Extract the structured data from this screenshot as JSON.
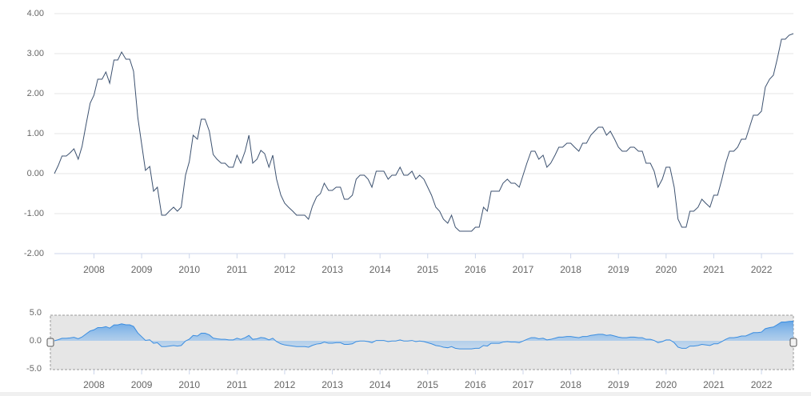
{
  "chart_data": {
    "type": "line",
    "x": [
      2007.17,
      2007.25,
      2007.33,
      2007.42,
      2007.5,
      2007.58,
      2007.67,
      2007.75,
      2007.83,
      2007.92,
      2008,
      2008.08,
      2008.17,
      2008.25,
      2008.33,
      2008.42,
      2008.5,
      2008.58,
      2008.67,
      2008.75,
      2008.83,
      2008.92,
      2009,
      2009.08,
      2009.17,
      2009.25,
      2009.33,
      2009.42,
      2009.5,
      2009.58,
      2009.67,
      2009.75,
      2009.83,
      2009.92,
      2010,
      2010.08,
      2010.17,
      2010.25,
      2010.33,
      2010.42,
      2010.5,
      2010.58,
      2010.67,
      2010.75,
      2010.83,
      2010.92,
      2011,
      2011.08,
      2011.17,
      2011.25,
      2011.33,
      2011.42,
      2011.5,
      2011.58,
      2011.67,
      2011.75,
      2011.83,
      2011.92,
      2012,
      2012.08,
      2012.17,
      2012.25,
      2012.33,
      2012.42,
      2012.5,
      2012.58,
      2012.67,
      2012.75,
      2012.83,
      2012.92,
      2013,
      2013.08,
      2013.17,
      2013.25,
      2013.33,
      2013.42,
      2013.5,
      2013.58,
      2013.67,
      2013.75,
      2013.83,
      2013.92,
      2014,
      2014.08,
      2014.17,
      2014.25,
      2014.33,
      2014.42,
      2014.5,
      2014.58,
      2014.67,
      2014.75,
      2014.83,
      2014.92,
      2015,
      2015.08,
      2015.17,
      2015.25,
      2015.33,
      2015.42,
      2015.5,
      2015.58,
      2015.67,
      2015.75,
      2015.83,
      2015.92,
      2016,
      2016.08,
      2016.17,
      2016.25,
      2016.33,
      2016.42,
      2016.5,
      2016.58,
      2016.67,
      2016.75,
      2016.83,
      2016.92,
      2017,
      2017.08,
      2017.17,
      2017.25,
      2017.33,
      2017.42,
      2017.5,
      2017.58,
      2017.67,
      2017.75,
      2017.83,
      2017.92,
      2018,
      2018.08,
      2018.17,
      2018.25,
      2018.33,
      2018.42,
      2018.5,
      2018.58,
      2018.67,
      2018.75,
      2018.83,
      2018.92,
      2019,
      2019.08,
      2019.17,
      2019.25,
      2019.33,
      2019.42,
      2019.5,
      2019.58,
      2019.67,
      2019.75,
      2019.83,
      2019.92,
      2020,
      2020.08,
      2020.17,
      2020.25,
      2020.33,
      2020.42,
      2020.5,
      2020.58,
      2020.67,
      2020.75,
      2020.83,
      2020.92,
      2021,
      2021.08,
      2021.17,
      2021.25,
      2021.33,
      2021.42,
      2021.5,
      2021.58,
      2021.67,
      2021.75,
      2021.83,
      2021.92,
      2022,
      2022.08,
      2022.17,
      2022.25,
      2022.33,
      2022.42,
      2022.5,
      2022.58,
      2022.67
    ],
    "series": [
      {
        "color": "#3d5270",
        "values": [
          0.0,
          0.2,
          0.44,
          0.44,
          0.52,
          0.62,
          0.36,
          0.68,
          1.2,
          1.76,
          1.96,
          2.36,
          2.36,
          2.54,
          2.26,
          2.84,
          2.84,
          3.04,
          2.86,
          2.86,
          2.56,
          1.4,
          0.74,
          0.08,
          0.18,
          -0.44,
          -0.34,
          -1.04,
          -1.04,
          -0.94,
          -0.84,
          -0.94,
          -0.84,
          -0.04,
          0.3,
          0.96,
          0.86,
          1.36,
          1.36,
          1.06,
          0.48,
          0.36,
          0.26,
          0.26,
          0.16,
          0.16,
          0.46,
          0.26,
          0.56,
          0.96,
          0.26,
          0.36,
          0.58,
          0.5,
          0.16,
          0.46,
          -0.14,
          -0.54,
          -0.74,
          -0.84,
          -0.94,
          -1.04,
          -1.04,
          -1.04,
          -1.14,
          -0.82,
          -0.58,
          -0.5,
          -0.24,
          -0.42,
          -0.42,
          -0.34,
          -0.34,
          -0.64,
          -0.64,
          -0.54,
          -0.14,
          -0.04,
          -0.04,
          -0.14,
          -0.34,
          0.06,
          0.06,
          0.06,
          -0.14,
          -0.04,
          -0.04,
          0.16,
          -0.04,
          -0.04,
          0.06,
          -0.14,
          -0.04,
          -0.14,
          -0.34,
          -0.54,
          -0.84,
          -0.94,
          -1.14,
          -1.24,
          -1.04,
          -1.34,
          -1.44,
          -1.44,
          -1.44,
          -1.44,
          -1.34,
          -1.34,
          -0.84,
          -0.94,
          -0.44,
          -0.44,
          -0.44,
          -0.24,
          -0.14,
          -0.24,
          -0.24,
          -0.34,
          -0.04,
          0.26,
          0.56,
          0.56,
          0.36,
          0.46,
          0.16,
          0.26,
          0.46,
          0.66,
          0.66,
          0.76,
          0.76,
          0.66,
          0.56,
          0.76,
          0.76,
          0.96,
          1.06,
          1.16,
          1.16,
          0.96,
          1.06,
          0.86,
          0.66,
          0.56,
          0.56,
          0.66,
          0.66,
          0.56,
          0.56,
          0.26,
          0.26,
          0.06,
          -0.34,
          -0.14,
          0.16,
          0.16,
          -0.34,
          -1.14,
          -1.34,
          -1.34,
          -0.94,
          -0.94,
          -0.84,
          -0.64,
          -0.74,
          -0.84,
          -0.54,
          -0.54,
          -0.14,
          0.26,
          0.56,
          0.56,
          0.66,
          0.86,
          0.86,
          1.16,
          1.46,
          1.46,
          1.56,
          2.16,
          2.36,
          2.46,
          2.86,
          3.36,
          3.36,
          3.46,
          3.5
        ]
      }
    ],
    "xlim": [
      2007.17,
      2022.67
    ],
    "xticks": [
      2008,
      2009,
      2010,
      2011,
      2012,
      2013,
      2014,
      2015,
      2016,
      2017,
      2018,
      2019,
      2020,
      2021,
      2022
    ],
    "ylim": [
      -2,
      4
    ],
    "yticks": [
      {
        "value": 4,
        "label": "4.00"
      },
      {
        "value": 3,
        "label": "3.00"
      },
      {
        "value": 2,
        "label": "2.00"
      },
      {
        "value": 1,
        "label": "1.00"
      },
      {
        "value": 0,
        "label": "0.00"
      },
      {
        "value": -1,
        "label": "-1.00"
      },
      {
        "value": -2,
        "label": "-2.00"
      }
    ],
    "grid": true,
    "navigator": {
      "color": "#3a8de0",
      "ylim": [
        -5,
        5
      ],
      "yticks": [
        {
          "value": 5,
          "label": "5.0"
        },
        {
          "value": 0,
          "label": "0.0"
        },
        {
          "value": -5,
          "label": "-5.0"
        }
      ]
    }
  }
}
